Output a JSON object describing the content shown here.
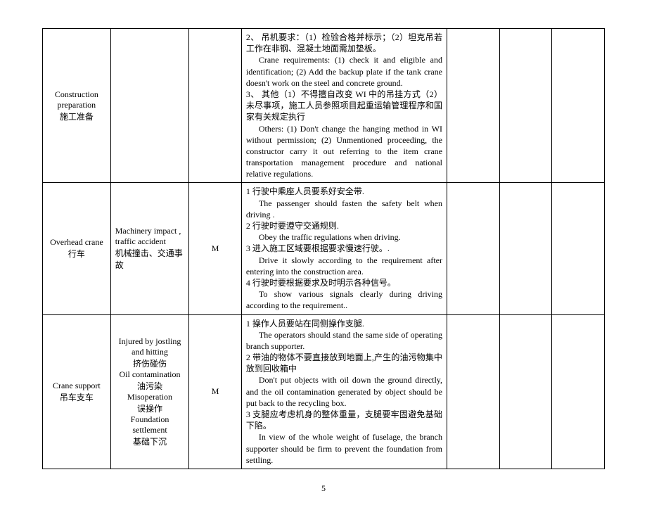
{
  "rows": [
    {
      "col0_en": "Construction preparation",
      "col0_zh": "施工准备",
      "col1": "",
      "col2": "",
      "desc": [
        {
          "t": "zh",
          "v": "2、 吊机要求：（1）检验合格并标示；（2）坦克吊若工作在非钢、混凝土地面需加垫板。"
        },
        {
          "t": "en-indent",
          "v": "Crane requirements: (1) check it and eligible and identification; (2) Add the backup plate if the tank crane doesn't work on the steel and concrete ground."
        },
        {
          "t": "zh",
          "v": "3、 其他（1）不得擅自改变 WI 中的吊挂方式（2）未尽事项，施工人员参照项目起重运输管理程序和国家有关规定执行"
        },
        {
          "t": "en-indent",
          "v": "Others: (1) Don't change the hanging method in WI without permission; (2) Unmentioned proceeding, the constructor carry it out referring to the item crane transportation management procedure and national relative regulations."
        }
      ]
    },
    {
      "col0_en": "Overhead crane",
      "col0_zh": "行车",
      "col1_en": "Machinery impact , traffic accident",
      "col1_zh": "机械撞击、交通事故",
      "col2": "M",
      "desc": [
        {
          "t": "zh",
          "v": "1 行驶中乘座人员要系好安全带."
        },
        {
          "t": "en-indent",
          "v": "The passenger should fasten the safety belt when driving ."
        },
        {
          "t": "zh",
          "v": "2 行驶时要遵守交通规则."
        },
        {
          "t": "en-indent",
          "v": "Obey the traffic regulations when driving."
        },
        {
          "t": "zh",
          "v": "3 进入施工区域要根据要求慢速行驶。."
        },
        {
          "t": "en-indent",
          "v": "Drive it slowly according to the requirement after entering into the construction area."
        },
        {
          "t": "zh",
          "v": "4 行驶时要根据要求及时明示各种信号。"
        },
        {
          "t": "en-indent",
          "v": "To show various signals clearly during driving according to the requirement.."
        }
      ]
    },
    {
      "col0_en": "Crane support",
      "col0_zh": "吊车支车",
      "col1_lines": [
        "Injured by jostling and hitting",
        "挤伤碰伤",
        "Oil contamination",
        "油污染",
        "Misoperation",
        "误操作",
        "Foundation settlement",
        "基础下沉"
      ],
      "col2": "M",
      "desc": [
        {
          "t": "zh",
          "v": "1 操作人员要站在同侧操作支腿."
        },
        {
          "t": "en-indent",
          "v": "The operators should stand the same side of operating branch supporter."
        },
        {
          "t": "zh",
          "v": "2 带油的物体不要直接放到地面上,产生的油污物集中放到回收箱中"
        },
        {
          "t": "en-indent",
          "v": "Don't put objects with oil down the ground directly, and the oil contamination generated by object should be put back to the recycling box."
        },
        {
          "t": "zh",
          "v": "3 支腿应考虑机身的整体重量，支腿要牢固避免基础下陷。"
        },
        {
          "t": "en-indent",
          "v": "In view of the whole weight of fuselage, the branch supporter should be firm to prevent   the foundation from settling."
        }
      ]
    }
  ],
  "page_number": "5"
}
